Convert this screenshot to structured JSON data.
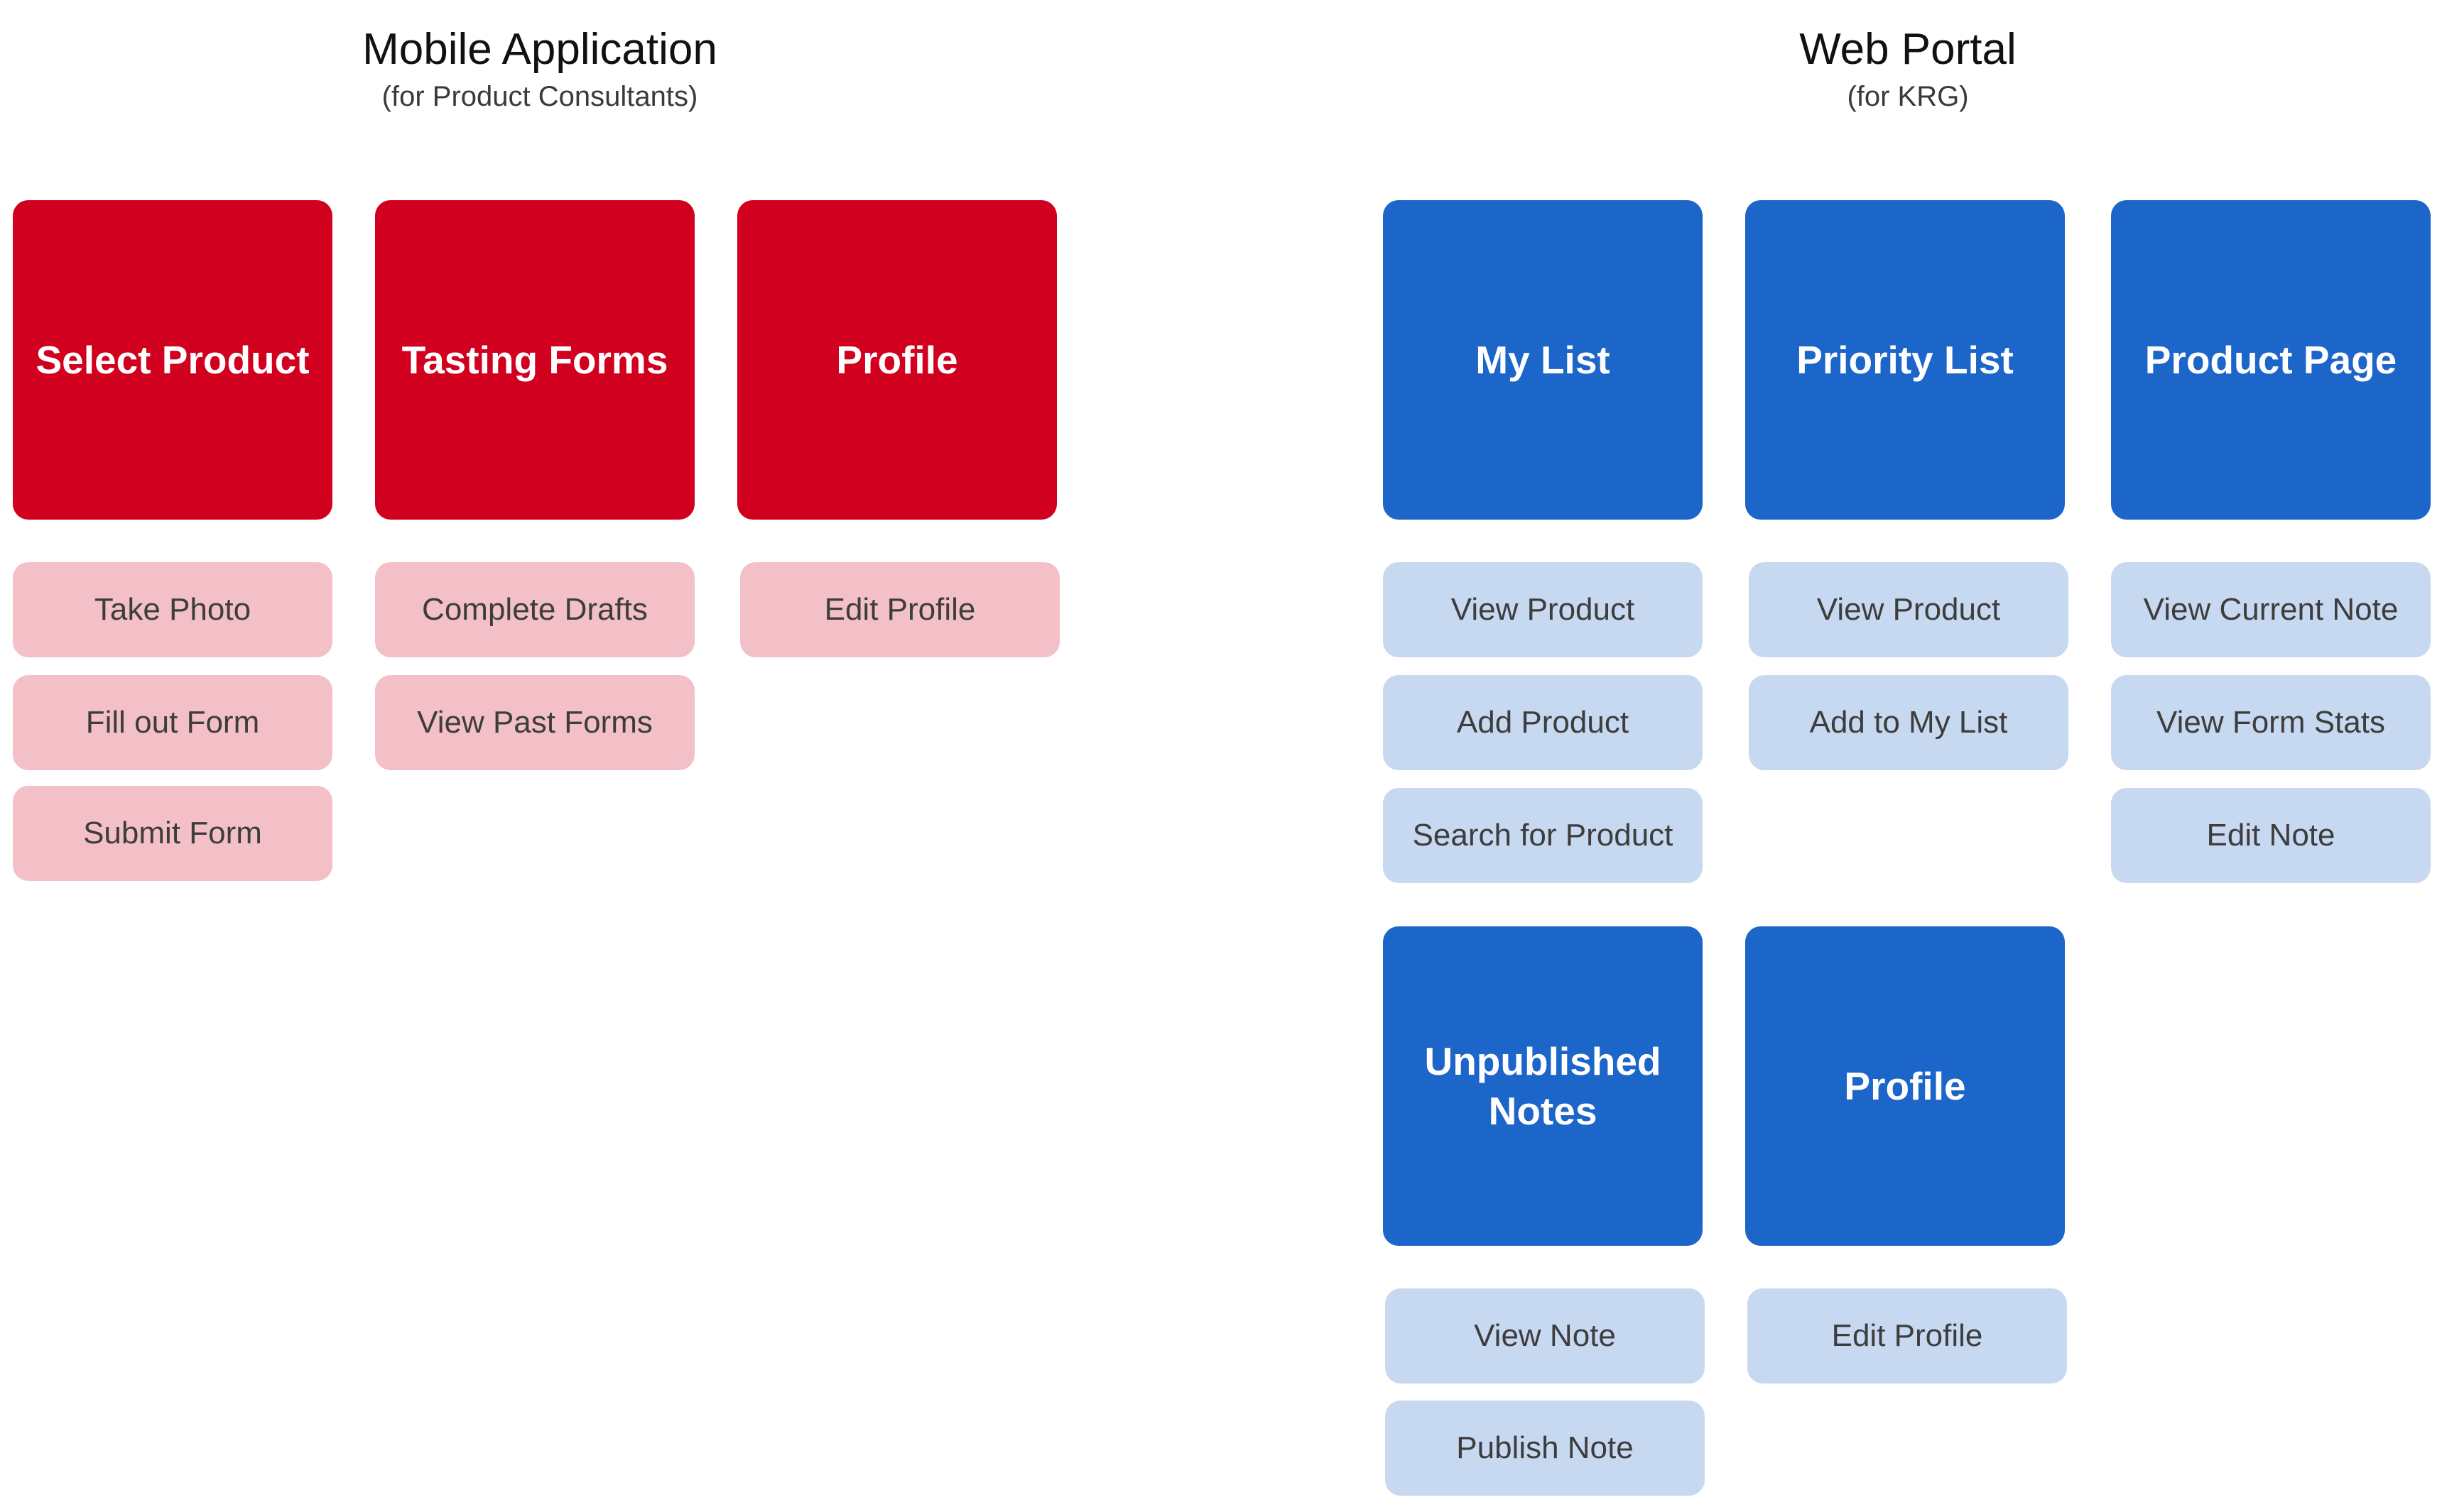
{
  "mobile": {
    "title": "Mobile Application",
    "subtitle": "(for Product Consultants)",
    "colors": {
      "main": "#d2001f",
      "sub": "#f3c0c8"
    },
    "groups": [
      {
        "label": "Select Product",
        "actions": [
          "Take Photo",
          "Fill out Form",
          "Submit Form"
        ]
      },
      {
        "label": "Tasting Forms",
        "actions": [
          "Complete Drafts",
          "View Past Forms"
        ]
      },
      {
        "label": "Profile",
        "actions": [
          "Edit Profile"
        ]
      }
    ]
  },
  "web": {
    "title": "Web Portal",
    "subtitle": "(for KRG)",
    "colors": {
      "main": "#1c65c9",
      "sub": "#c7d8f1"
    },
    "groups": [
      {
        "label": "My List",
        "actions": [
          "View Product",
          "Add Product",
          "Search for Product"
        ]
      },
      {
        "label": "Priority List",
        "actions": [
          "View Product",
          "Add to My List"
        ]
      },
      {
        "label": "Product Page",
        "actions": [
          "View Current Note",
          "View Form Stats",
          "Edit Note"
        ]
      },
      {
        "label": "Unpublished Notes",
        "actions": [
          "View Note",
          "Publish Note"
        ]
      },
      {
        "label": "Profile",
        "actions": [
          "Edit Profile"
        ]
      }
    ]
  }
}
